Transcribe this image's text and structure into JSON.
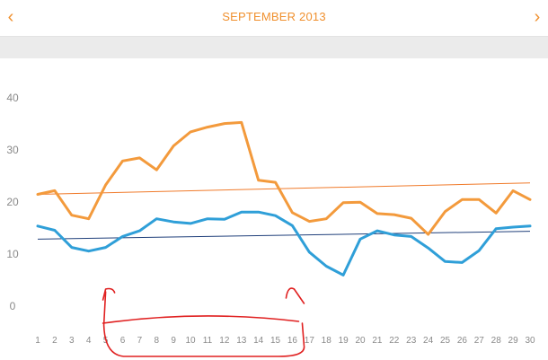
{
  "header": {
    "title": "SEPTEMBER 2013",
    "prev_icon": "chevron-left-icon",
    "next_icon": "chevron-right-icon",
    "prev_glyph": "‹",
    "next_glyph": "›",
    "accent_color": "#f0902e"
  },
  "chart_data": {
    "type": "line",
    "x": [
      1,
      2,
      3,
      4,
      5,
      6,
      7,
      8,
      9,
      10,
      11,
      12,
      13,
      14,
      15,
      16,
      17,
      18,
      19,
      20,
      21,
      22,
      23,
      24,
      25,
      26,
      27,
      28,
      29,
      30
    ],
    "xlim": [
      1,
      30
    ],
    "ylim": [
      0,
      40
    ],
    "yticks": [
      0,
      10,
      20,
      30,
      40
    ],
    "series": [
      {
        "color": "#f39a3c",
        "values": [
          21.3,
          22,
          17.3,
          16.6,
          23.1,
          27.7,
          28.3,
          26,
          30.6,
          33.3,
          34.2,
          34.9,
          35.1,
          24,
          23.6,
          17.8,
          16.1,
          16.6,
          19.7,
          19.8,
          17.6,
          17.4,
          16.7,
          13.6,
          18,
          20.3,
          20.3,
          17.7,
          22,
          20.3
        ]
      },
      {
        "color": "#2f9fd8",
        "values": [
          15.2,
          14.4,
          11.1,
          10.4,
          11.1,
          13.2,
          14.3,
          16.6,
          16,
          15.7,
          16.6,
          16.5,
          17.9,
          17.9,
          17.2,
          15.3,
          10.2,
          7.5,
          5.8,
          12.7,
          14.3,
          13.5,
          13.2,
          11,
          8.4,
          8.2,
          10.5,
          14.7,
          15,
          15.2
        ]
      }
    ],
    "trendlines": [
      {
        "color": "#f07a2a",
        "start": 21.3,
        "end": 23.5
      },
      {
        "color": "#1f3f7a",
        "start": 12.7,
        "end": 14.2
      }
    ],
    "annotation": {
      "type": "freehand-bracket",
      "color": "#e02020",
      "x_from": 5,
      "x_to": 16
    }
  }
}
